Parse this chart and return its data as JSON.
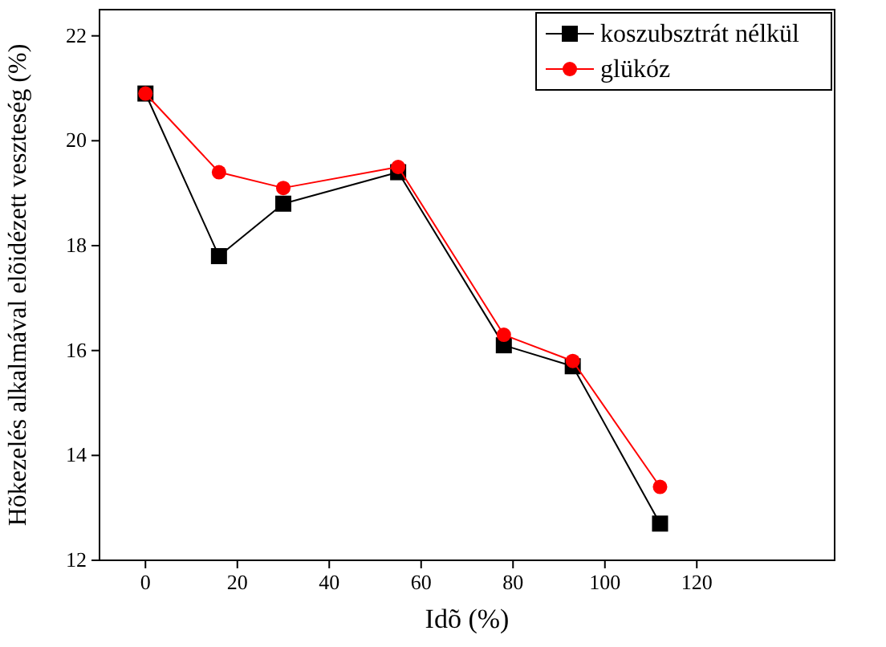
{
  "chart_data": {
    "type": "line",
    "xlabel": "Idõ (%)",
    "ylabel": "Hõkezelés alkalmával elõidézett veszteség (%)",
    "x": [
      0,
      16,
      30,
      55,
      78,
      93,
      112
    ],
    "series": [
      {
        "name": "koszubsztrát nélkül",
        "color": "#000000",
        "marker": "square",
        "values": [
          20.9,
          17.8,
          18.8,
          19.4,
          16.1,
          15.7,
          12.7
        ]
      },
      {
        "name": "glükóz",
        "color": "#ff0000",
        "marker": "circle",
        "values": [
          20.9,
          19.4,
          19.1,
          19.5,
          16.3,
          15.8,
          13.4
        ]
      }
    ],
    "xlim": [
      -10,
      150
    ],
    "xticks": [
      0,
      20,
      40,
      60,
      80,
      100,
      120
    ],
    "ylim": [
      12,
      22.5
    ],
    "yticks": [
      12,
      14,
      16,
      18,
      20,
      22
    ],
    "grid": false,
    "legend": "top right",
    "line_style": "solid"
  }
}
